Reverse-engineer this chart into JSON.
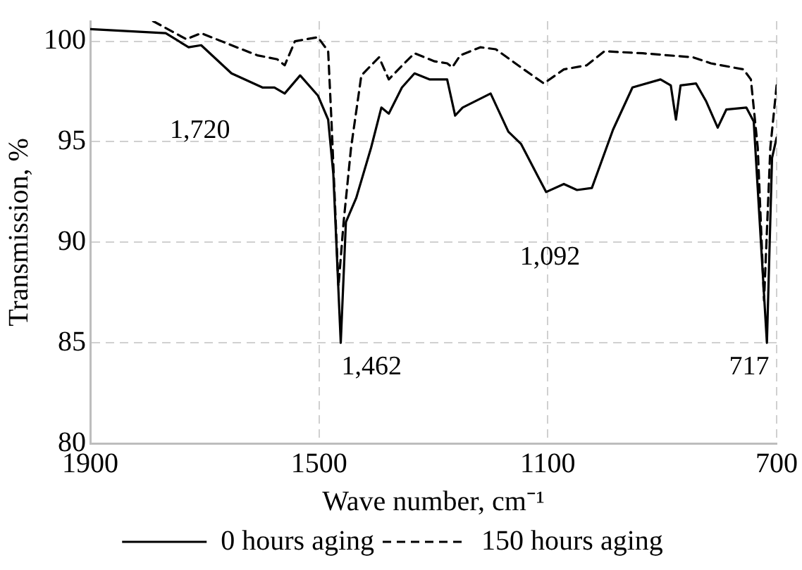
{
  "chart_data": {
    "type": "line",
    "xlabel": "Wave number, cm⁻¹",
    "ylabel": "Transmission, %",
    "xlim": [
      1900,
      700
    ],
    "xticks": [
      1900,
      1500,
      1100,
      700
    ],
    "ylim": [
      80,
      101
    ],
    "yticks": [
      80,
      85,
      90,
      95,
      100
    ],
    "grid": true,
    "legend": "bottom",
    "marker": "none",
    "series": [
      {
        "name": "0 hours aging",
        "color": "#000000",
        "line_style": "solid",
        "x": [
          1900,
          1768,
          1728,
          1706,
          1653,
          1599,
          1578,
          1560,
          1533,
          1502,
          1484,
          1475,
          1462,
          1453,
          1435,
          1409,
          1391,
          1378,
          1355,
          1333,
          1307,
          1276,
          1262,
          1249,
          1200,
          1169,
          1147,
          1103,
          1072,
          1049,
          1023,
          986,
          952,
          903,
          885,
          876,
          868,
          841,
          823,
          803,
          788,
          753,
          740,
          717,
          708,
          700
        ],
        "values": [
          100.6,
          100.4,
          99.7,
          99.8,
          98.4,
          97.7,
          97.7,
          97.4,
          98.3,
          97.3,
          96.1,
          93.4,
          85,
          91.0,
          92.2,
          94.7,
          96.7,
          96.4,
          97.7,
          98.4,
          98.1,
          98.1,
          96.3,
          96.7,
          97.4,
          95.5,
          94.9,
          92.5,
          92.9,
          92.6,
          92.7,
          95.6,
          97.7,
          98.1,
          97.8,
          96.1,
          97.8,
          97.9,
          97.0,
          95.7,
          96.6,
          96.7,
          96.0,
          85,
          94.2,
          95.2
        ]
      },
      {
        "name": "150 hours aging",
        "color": "#000000",
        "line_style": "dashed",
        "x": [
          1790,
          1732,
          1706,
          1653,
          1608,
          1573,
          1560,
          1542,
          1502,
          1484,
          1478,
          1466,
          1457,
          1444,
          1426,
          1395,
          1378,
          1351,
          1333,
          1298,
          1276,
          1267,
          1253,
          1218,
          1191,
          1147,
          1107,
          1072,
          1032,
          1001,
          934,
          846,
          815,
          758,
          745,
          733,
          722,
          711,
          700
        ],
        "values": [
          101,
          100.1,
          100.4,
          99.8,
          99.3,
          99.1,
          98.8,
          100.0,
          100.2,
          99.5,
          95.9,
          87.8,
          91.0,
          94.7,
          98.3,
          99.2,
          98.1,
          98.9,
          99.4,
          99.0,
          98.9,
          98.7,
          99.3,
          99.7,
          99.6,
          98.7,
          97.9,
          98.6,
          98.8,
          99.5,
          99.4,
          99.2,
          98.9,
          98.6,
          98.1,
          94.7,
          87.1,
          94.7,
          97.8
        ]
      }
    ],
    "annotations": [
      "1,720",
      "1,462",
      "1,092",
      "717"
    ]
  }
}
